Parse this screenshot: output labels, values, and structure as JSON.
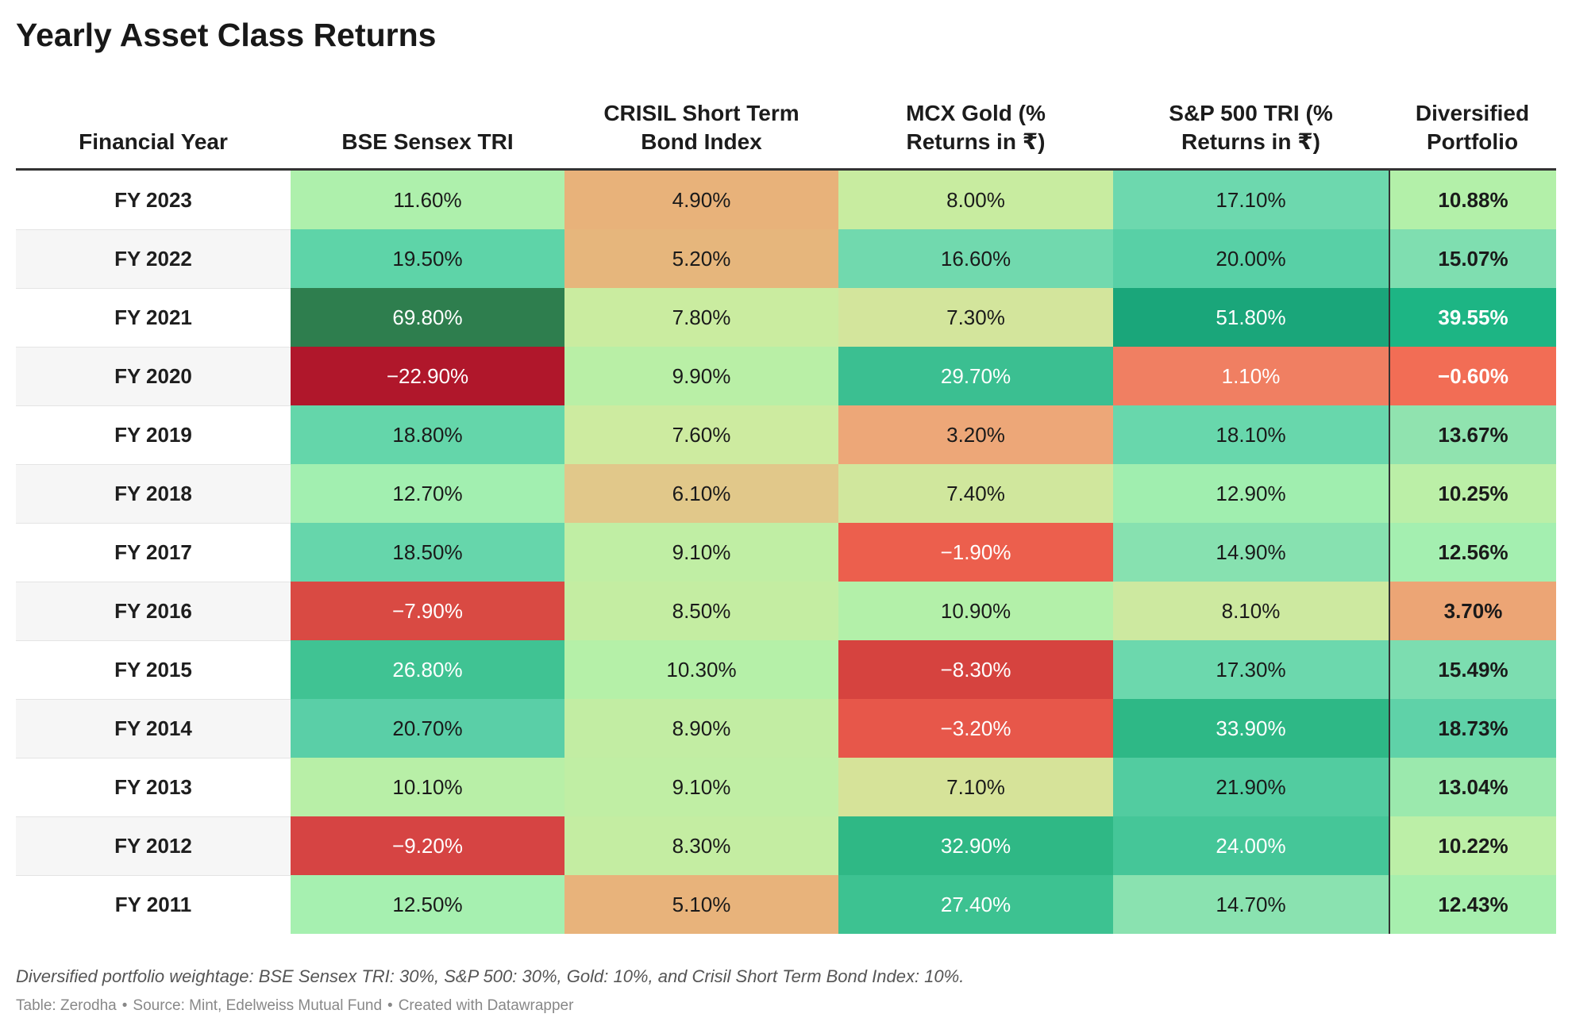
{
  "chart_data": {
    "type": "table",
    "title": "Yearly Asset Class Returns",
    "columns": [
      "Financial Year",
      "BSE Sensex TRI",
      "CRISIL Short Term Bond Index",
      "MCX Gold (% Returns in ₹)",
      "S&P 500 TRI (% Returns in ₹)",
      "Diversified Portfolio"
    ],
    "rows": [
      {
        "label": "FY 2023",
        "values": [
          11.6,
          4.9,
          8.0,
          17.1,
          10.88
        ],
        "colors": [
          "#aef0ac",
          "#e8b27a",
          "#c8eca0",
          "#6dd8ae",
          "#b3f0a9"
        ]
      },
      {
        "label": "FY 2022",
        "values": [
          19.5,
          5.2,
          16.6,
          20.0,
          15.07
        ],
        "colors": [
          "#5ed4a8",
          "#e6b67c",
          "#71d9ae",
          "#58d0a6",
          "#7fdeb0"
        ]
      },
      {
        "label": "FY 2021",
        "values": [
          69.8,
          7.8,
          7.3,
          51.8,
          39.55
        ],
        "colors": [
          "#2e7e4e",
          "#caeca0",
          "#d3e59c",
          "#1aa67a",
          "#1db584"
        ]
      },
      {
        "label": "FY 2020",
        "values": [
          -22.9,
          9.9,
          29.7,
          1.1,
          -0.6
        ],
        "colors": [
          "#b0172b",
          "#b9efa6",
          "#3bbf91",
          "#f07f62",
          "#f26d55"
        ]
      },
      {
        "label": "FY 2019",
        "values": [
          18.8,
          7.6,
          3.2,
          18.1,
          13.67
        ],
        "colors": [
          "#64d6aa",
          "#cdeba0",
          "#eda778",
          "#68d7ac",
          "#90e3af"
        ]
      },
      {
        "label": "FY 2018",
        "values": [
          12.7,
          6.1,
          7.4,
          12.9,
          10.25
        ],
        "colors": [
          "#a2efb0",
          "#e1c88a",
          "#d0e79d",
          "#a0eeaf",
          "#bbefa7"
        ]
      },
      {
        "label": "FY 2017",
        "values": [
          18.5,
          9.1,
          -1.9,
          14.9,
          12.56
        ],
        "colors": [
          "#66d6ab",
          "#c0eea4",
          "#ec5f4d",
          "#87e1b0",
          "#a4efb0"
        ]
      },
      {
        "label": "FY 2016",
        "values": [
          -7.9,
          8.5,
          10.9,
          8.1,
          3.7
        ],
        "colors": [
          "#d94a43",
          "#c4eda2",
          "#b3f0a9",
          "#cde9a0",
          "#eca575"
        ]
      },
      {
        "label": "FY 2015",
        "values": [
          26.8,
          10.3,
          -8.3,
          17.3,
          15.49
        ],
        "colors": [
          "#40c393",
          "#b5f0a8",
          "#d6433f",
          "#6cd8ad",
          "#7cddb0"
        ]
      },
      {
        "label": "FY 2014",
        "values": [
          20.7,
          8.9,
          -3.2,
          33.9,
          18.73
        ],
        "colors": [
          "#5acfa7",
          "#c2eda3",
          "#e7574a",
          "#2eb886",
          "#5fd2a8"
        ]
      },
      {
        "label": "FY 2013",
        "values": [
          10.1,
          9.1,
          7.1,
          21.9,
          13.04
        ],
        "colors": [
          "#b8efa7",
          "#c0eea4",
          "#d6e399",
          "#52cca0",
          "#9be9ad"
        ]
      },
      {
        "label": "FY 2012",
        "values": [
          -9.2,
          8.3,
          32.9,
          24.0,
          10.22
        ],
        "colors": [
          "#d64443",
          "#c4eda2",
          "#2fb885",
          "#45c698",
          "#bcefa7"
        ]
      },
      {
        "label": "FY 2011",
        "values": [
          12.5,
          5.1,
          27.4,
          14.7,
          12.43
        ],
        "colors": [
          "#a6f0b0",
          "#e8b37b",
          "#3dc291",
          "#8ae2b0",
          "#a7efae"
        ]
      }
    ]
  },
  "notes": {
    "weightage": "Diversified portfolio weightage: BSE Sensex TRI: 30%, S&P 500: 30%, Gold: 10%, and Crisil Short Term Bond Index: 10%."
  },
  "footer": {
    "byline": "Table: Zerodha",
    "separator": "•",
    "source": "Source: Mint, Edelweiss Mutual Fund",
    "credit": "Created with Datawrapper"
  }
}
